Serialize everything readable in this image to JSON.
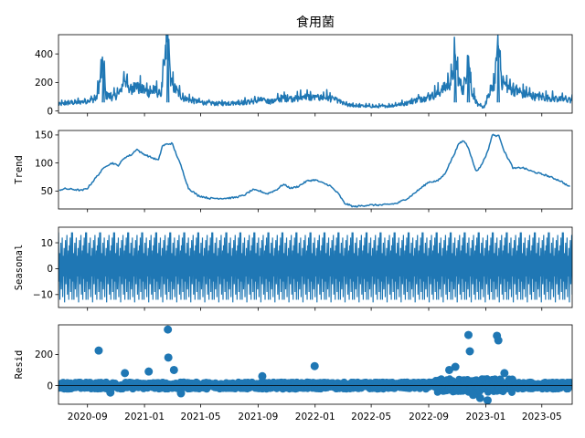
{
  "title": "食用菌",
  "colors": {
    "series": "#1f77b4",
    "axis": "#000000"
  },
  "chart_data": {
    "type": "line",
    "layout": "4 vertically stacked subplots sharing the x axis (seasonal decomposition)",
    "x_ticks": [
      "2020-09",
      "2021-01",
      "2021-05",
      "2021-09",
      "2022-01",
      "2022-05",
      "2022-09",
      "2023-01",
      "2023-05"
    ],
    "x_range": [
      "2020-07-01",
      "2023-07-05"
    ],
    "panels": [
      {
        "name": "observed",
        "ylabel": "",
        "type": "line",
        "yticks": [
          "0",
          "200",
          "400"
        ],
        "ylim": [
          -15,
          535
        ],
        "points": [
          [
            "2020-07-01",
            45
          ],
          [
            "2020-07-20",
            55
          ],
          [
            "2020-08-15",
            60
          ],
          [
            "2020-09-01",
            70
          ],
          [
            "2020-09-20",
            85
          ],
          [
            "2020-10-05",
            330
          ],
          [
            "2020-10-10",
            110
          ],
          [
            "2020-10-25",
            95
          ],
          [
            "2020-11-10",
            125
          ],
          [
            "2020-11-20",
            240
          ],
          [
            "2020-11-28",
            140
          ],
          [
            "2020-12-10",
            175
          ],
          [
            "2020-12-25",
            150
          ],
          [
            "2021-01-10",
            130
          ],
          [
            "2021-01-25",
            140
          ],
          [
            "2021-02-05",
            110
          ],
          [
            "2021-02-20",
            515
          ],
          [
            "2021-02-26",
            200
          ],
          [
            "2021-03-10",
            140
          ],
          [
            "2021-03-25",
            90
          ],
          [
            "2021-04-15",
            70
          ],
          [
            "2021-05-10",
            55
          ],
          [
            "2021-06-10",
            50
          ],
          [
            "2021-07-10",
            55
          ],
          [
            "2021-08-10",
            60
          ],
          [
            "2021-09-05",
            75
          ],
          [
            "2021-10-01",
            65
          ],
          [
            "2021-10-25",
            90
          ],
          [
            "2021-11-20",
            85
          ],
          [
            "2021-12-10",
            100
          ],
          [
            "2022-01-01",
            90
          ],
          [
            "2022-01-25",
            95
          ],
          [
            "2022-02-15",
            75
          ],
          [
            "2022-03-10",
            40
          ],
          [
            "2022-04-10",
            35
          ],
          [
            "2022-05-10",
            30
          ],
          [
            "2022-06-10",
            35
          ],
          [
            "2022-07-10",
            50
          ],
          [
            "2022-08-10",
            80
          ],
          [
            "2022-09-01",
            95
          ],
          [
            "2022-09-25",
            130
          ],
          [
            "2022-10-20",
            210
          ],
          [
            "2022-10-28",
            360
          ],
          [
            "2022-11-05",
            200
          ],
          [
            "2022-11-15",
            140
          ],
          [
            "2022-11-25",
            380
          ],
          [
            "2022-12-01",
            150
          ],
          [
            "2022-12-15",
            40
          ],
          [
            "2022-12-28",
            25
          ],
          [
            "2023-01-10",
            120
          ],
          [
            "2023-01-20",
            200
          ],
          [
            "2023-01-28",
            460
          ],
          [
            "2023-02-05",
            200
          ],
          [
            "2023-02-20",
            160
          ],
          [
            "2023-03-15",
            125
          ],
          [
            "2023-04-15",
            100
          ],
          [
            "2023-05-15",
            90
          ],
          [
            "2023-06-15",
            80
          ],
          [
            "2023-07-05",
            75
          ]
        ]
      },
      {
        "name": "trend",
        "ylabel": "Trend",
        "type": "line",
        "yticks": [
          "50",
          "100",
          "150"
        ],
        "ylim": [
          18,
          158
        ],
        "points": [
          [
            "2020-07-03",
            52
          ],
          [
            "2020-07-15",
            54
          ],
          [
            "2020-08-01",
            53
          ],
          [
            "2020-08-20",
            51
          ],
          [
            "2020-09-01",
            55
          ],
          [
            "2020-09-20",
            75
          ],
          [
            "2020-10-10",
            95
          ],
          [
            "2020-10-25",
            100
          ],
          [
            "2020-11-05",
            95
          ],
          [
            "2020-11-20",
            110
          ],
          [
            "2020-12-05",
            115
          ],
          [
            "2020-12-15",
            125
          ],
          [
            "2020-12-25",
            118
          ],
          [
            "2021-01-15",
            110
          ],
          [
            "2021-01-31",
            105
          ],
          [
            "2021-02-08",
            130
          ],
          [
            "2021-02-15",
            133
          ],
          [
            "2021-03-01",
            135
          ],
          [
            "2021-03-08",
            120
          ],
          [
            "2021-03-20",
            95
          ],
          [
            "2021-04-05",
            55
          ],
          [
            "2021-04-25",
            42
          ],
          [
            "2021-05-20",
            37
          ],
          [
            "2021-06-20",
            37
          ],
          [
            "2021-07-10",
            38
          ],
          [
            "2021-08-01",
            42
          ],
          [
            "2021-08-20",
            52
          ],
          [
            "2021-09-05",
            50
          ],
          [
            "2021-09-20",
            45
          ],
          [
            "2021-10-10",
            52
          ],
          [
            "2021-10-25",
            62
          ],
          [
            "2021-11-10",
            55
          ],
          [
            "2021-11-25",
            58
          ],
          [
            "2021-12-15",
            68
          ],
          [
            "2022-01-01",
            70
          ],
          [
            "2022-01-15",
            65
          ],
          [
            "2022-02-01",
            60
          ],
          [
            "2022-02-20",
            45
          ],
          [
            "2022-03-05",
            28
          ],
          [
            "2022-03-25",
            22
          ],
          [
            "2022-04-25",
            25
          ],
          [
            "2022-05-25",
            25
          ],
          [
            "2022-06-25",
            28
          ],
          [
            "2022-07-20",
            38
          ],
          [
            "2022-08-15",
            55
          ],
          [
            "2022-09-01",
            66
          ],
          [
            "2022-09-20",
            68
          ],
          [
            "2022-10-05",
            80
          ],
          [
            "2022-10-25",
            115
          ],
          [
            "2022-11-05",
            135
          ],
          [
            "2022-11-15",
            140
          ],
          [
            "2022-11-25",
            128
          ],
          [
            "2022-12-05",
            100
          ],
          [
            "2022-12-12",
            85
          ],
          [
            "2022-12-22",
            95
          ],
          [
            "2023-01-05",
            120
          ],
          [
            "2023-01-15",
            150
          ],
          [
            "2023-01-30",
            148
          ],
          [
            "2023-02-10",
            120
          ],
          [
            "2023-02-20",
            105
          ],
          [
            "2023-03-01",
            90
          ],
          [
            "2023-03-20",
            92
          ],
          [
            "2023-04-10",
            85
          ],
          [
            "2023-05-10",
            78
          ],
          [
            "2023-06-10",
            68
          ],
          [
            "2023-06-30",
            57
          ]
        ]
      },
      {
        "name": "seasonal",
        "ylabel": "Seasonal",
        "type": "line",
        "note": "periodic oscillation, period about 1 month",
        "period_days": 30,
        "yticks": [
          "10",
          "0",
          "−10"
        ],
        "ylim": [
          -15,
          16
        ],
        "points": []
      },
      {
        "name": "resid",
        "ylabel": "Resid",
        "type": "scatter",
        "yticks": [
          "0",
          "200"
        ],
        "ylim": [
          -120,
          390
        ],
        "points": [
          [
            "2020-09-25",
            225
          ],
          [
            "2021-02-20",
            360
          ],
          [
            "2021-02-21",
            180
          ],
          [
            "2021-03-05",
            100
          ],
          [
            "2021-01-10",
            90
          ],
          [
            "2020-11-20",
            80
          ],
          [
            "2021-12-31",
            125
          ],
          [
            "2022-10-28",
            120
          ],
          [
            "2022-11-25",
            325
          ],
          [
            "2022-11-28",
            220
          ],
          [
            "2023-01-28",
            290
          ],
          [
            "2023-01-25",
            320
          ],
          [
            "2022-10-15",
            100
          ],
          [
            "2023-02-10",
            80
          ],
          [
            "2021-09-10",
            60
          ],
          [
            "2022-12-20",
            -80
          ],
          [
            "2023-01-05",
            -95
          ],
          [
            "2022-12-05",
            -60
          ],
          [
            "2021-03-20",
            -50
          ],
          [
            "2020-10-20",
            -45
          ]
        ]
      }
    ]
  }
}
